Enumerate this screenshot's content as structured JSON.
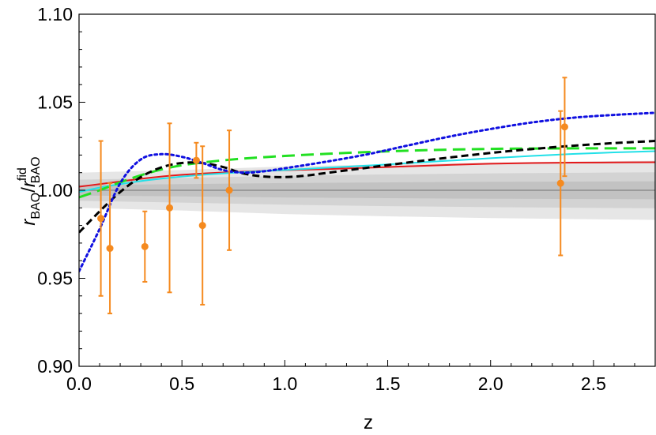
{
  "chart_data": {
    "type": "line",
    "title": "",
    "xlabel": "z",
    "ylabel": {
      "r_main": "r",
      "r_sub": "BAO",
      "slash": "/",
      "r2_main": "r",
      "r2_sup": "fid",
      "r2_sub": "BAO"
    },
    "xlim": [
      0,
      2.8
    ],
    "ylim": [
      0.9,
      1.1
    ],
    "x_ticks": [
      0.0,
      0.5,
      1.0,
      1.5,
      2.0,
      2.5
    ],
    "x_tick_labels": [
      "0.0",
      "0.5",
      "1.0",
      "1.5",
      "2.0",
      "2.5"
    ],
    "y_ticks": [
      0.9,
      0.95,
      1.0,
      1.05,
      1.1
    ],
    "y_tick_labels": [
      "0.90",
      "0.95",
      "1.00",
      "1.05",
      "1.10"
    ],
    "grid": false,
    "colors": {
      "red": "#e31a1c",
      "cyan": "#22e0e8",
      "green": "#22e022",
      "black": "#000000",
      "blue": "#1010e0",
      "data": "#f58a1f",
      "band_outer": "#e6e6e6",
      "band_mid": "#d3d3d3",
      "band_inner": "#c2c2c2",
      "center_line": "#8c8c8c"
    },
    "bands": {
      "x": [
        0.0,
        0.5,
        1.0,
        1.5,
        2.0,
        2.5,
        2.8
      ],
      "outer": [
        0.01,
        0.0115,
        0.0135,
        0.0148,
        0.0158,
        0.0165,
        0.0168
      ],
      "mid": [
        0.006,
        0.007,
        0.0082,
        0.009,
        0.0096,
        0.01,
        0.0102
      ],
      "inner": [
        0.003,
        0.0035,
        0.0041,
        0.0045,
        0.0048,
        0.005,
        0.0051
      ]
    },
    "series": [
      {
        "key": "red",
        "style": "solid",
        "x": [
          0.0,
          0.1,
          0.2,
          0.3,
          0.4,
          0.5,
          0.6,
          0.7,
          0.8,
          0.9,
          1.0,
          1.2,
          1.4,
          1.6,
          1.8,
          2.0,
          2.2,
          2.4,
          2.6,
          2.8
        ],
        "values": [
          1.002,
          1.0035,
          1.005,
          1.0065,
          1.0078,
          1.0088,
          1.0095,
          1.0101,
          1.0106,
          1.011,
          1.0114,
          1.012,
          1.0128,
          1.0136,
          1.0144,
          1.0151,
          1.0155,
          1.0157,
          1.0158,
          1.0159
        ]
      },
      {
        "key": "cyan",
        "style": "solid",
        "x": [
          0.0,
          0.1,
          0.2,
          0.3,
          0.4,
          0.5,
          0.6,
          0.7,
          0.8,
          0.9,
          1.0,
          1.2,
          1.4,
          1.6,
          1.8,
          2.0,
          2.2,
          2.4,
          2.6,
          2.8
        ],
        "values": [
          0.999,
          1.0015,
          1.0035,
          1.0052,
          1.0066,
          1.0078,
          1.0088,
          1.0096,
          1.0103,
          1.0109,
          1.0115,
          1.0128,
          1.014,
          1.0154,
          1.0168,
          1.0182,
          1.0195,
          1.0206,
          1.0215,
          1.0222
        ]
      },
      {
        "key": "green",
        "style": "long-dash",
        "x": [
          0.0,
          0.1,
          0.2,
          0.3,
          0.4,
          0.5,
          0.6,
          0.7,
          0.8,
          0.9,
          1.0,
          1.2,
          1.4,
          1.6,
          1.8,
          2.0,
          2.2,
          2.4,
          2.6,
          2.8
        ],
        "values": [
          0.996,
          1.0,
          1.0045,
          1.0085,
          1.0118,
          1.0142,
          1.0158,
          1.017,
          1.018,
          1.0188,
          1.0195,
          1.0207,
          1.0217,
          1.0225,
          1.0231,
          1.0235,
          1.0237,
          1.0238,
          1.0238,
          1.0238
        ]
      },
      {
        "key": "black",
        "style": "dash",
        "x": [
          0.0,
          0.1,
          0.2,
          0.3,
          0.4,
          0.5,
          0.6,
          0.7,
          0.8,
          0.9,
          1.0,
          1.1,
          1.2,
          1.4,
          1.6,
          1.8,
          2.0,
          2.2,
          2.4,
          2.6,
          2.8
        ],
        "values": [
          0.976,
          0.988,
          0.999,
          1.0075,
          1.013,
          1.0155,
          1.0155,
          1.0132,
          1.0095,
          1.0078,
          1.0075,
          1.0083,
          1.0098,
          1.0128,
          1.0158,
          1.0186,
          1.0212,
          1.0234,
          1.0253,
          1.0268,
          1.028
        ]
      },
      {
        "key": "blue",
        "style": "dot",
        "x": [
          0.0,
          0.1,
          0.2,
          0.3,
          0.4,
          0.5,
          0.6,
          0.7,
          0.8,
          0.9,
          1.0,
          1.2,
          1.4,
          1.6,
          1.8,
          2.0,
          2.2,
          2.4,
          2.6,
          2.8
        ],
        "values": [
          0.954,
          0.978,
          1.004,
          1.0175,
          1.0205,
          1.019,
          1.0155,
          1.0115,
          1.01,
          1.0108,
          1.0125,
          1.0162,
          1.0204,
          1.0255,
          1.0305,
          1.0348,
          1.0385,
          1.0412,
          1.0428,
          1.044
        ]
      }
    ],
    "data_points": [
      {
        "x": 0.106,
        "y": 0.984,
        "err": 0.044
      },
      {
        "x": 0.15,
        "y": 0.967,
        "err": 0.037
      },
      {
        "x": 0.32,
        "y": 0.968,
        "err": 0.02
      },
      {
        "x": 0.44,
        "y": 0.99,
        "err": 0.048
      },
      {
        "x": 0.57,
        "y": 1.017,
        "err": 0.01
      },
      {
        "x": 0.6,
        "y": 0.98,
        "err": 0.045
      },
      {
        "x": 0.73,
        "y": 1.0,
        "err": 0.034
      },
      {
        "x": 2.34,
        "y": 1.004,
        "err": 0.041
      },
      {
        "x": 2.36,
        "y": 1.036,
        "err": 0.028
      }
    ]
  }
}
